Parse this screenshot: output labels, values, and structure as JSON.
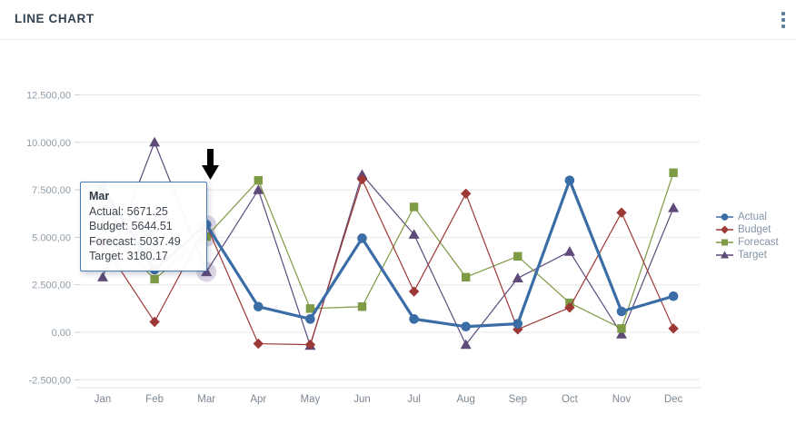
{
  "header": {
    "title": "LINE CHART"
  },
  "colors": {
    "actual": "#3a6da6",
    "budget": "#9c3836",
    "forecast": "#7d9a44",
    "target": "#5d4a79",
    "halo": "#b9abce",
    "grid": "#e8e8e8",
    "tick": "#cfcfcf",
    "axis_label": "#8f9dab",
    "month_label": "#7d8893",
    "tooltip_border": "#4a7db8",
    "arrow": "#000000"
  },
  "chart_data": {
    "type": "line",
    "title": "LINE CHART",
    "x_categories": [
      "Jan",
      "Feb",
      "Mar",
      "Apr",
      "May",
      "Jun",
      "Jul",
      "Aug",
      "Sep",
      "Oct",
      "Nov",
      "Dec"
    ],
    "y_ticks": [
      {
        "label": "12.500,00",
        "value": 12500
      },
      {
        "label": "10.000,00",
        "value": 10000
      },
      {
        "label": "7.500,00",
        "value": 7500
      },
      {
        "label": "5.000,00",
        "value": 5000
      },
      {
        "label": "2.500,00",
        "value": 2500
      },
      {
        "label": "0,00",
        "value": 0
      },
      {
        "label": "-2.500,00",
        "value": -2500
      }
    ],
    "ylim": [
      -2500,
      12500
    ],
    "grid": true,
    "legend_position": "right",
    "series": [
      {
        "name": "Actual",
        "marker": "circle",
        "color": "#3a6da6",
        "line_width": 3.2,
        "values": [
          7600,
          3300,
          5671.25,
          1350,
          700,
          4950,
          700,
          300,
          450,
          8000,
          1100,
          1900
        ]
      },
      {
        "name": "Budget",
        "marker": "diamond",
        "color": "#9c3836",
        "line_width": 1.2,
        "values": [
          4700,
          550,
          5644.51,
          -600,
          -650,
          8050,
          2150,
          7300,
          150,
          1300,
          6300,
          200
        ]
      },
      {
        "name": "Forecast",
        "marker": "square",
        "color": "#7d9a44",
        "line_width": 1.2,
        "values": [
          5550,
          2800,
          5037.49,
          8000,
          1250,
          1350,
          6600,
          2900,
          4000,
          1550,
          200,
          8400
        ]
      },
      {
        "name": "Target",
        "marker": "triangle",
        "color": "#5d4a79",
        "line_width": 1.2,
        "values": [
          2900,
          10000,
          3180.17,
          7500,
          -700,
          8300,
          5150,
          -650,
          2850,
          4250,
          -100,
          6550
        ]
      }
    ],
    "highlight": {
      "month": "Mar",
      "month_index": 2,
      "series": [
        "Budget",
        "Forecast",
        "Target"
      ]
    }
  },
  "tooltip": {
    "month": "Mar",
    "entries": [
      {
        "label": "Actual",
        "value": "5671.25"
      },
      {
        "label": "Budget",
        "value": "5644.51"
      },
      {
        "label": "Forecast",
        "value": "5037.49"
      },
      {
        "label": "Target",
        "value": "3180.17"
      }
    ]
  }
}
